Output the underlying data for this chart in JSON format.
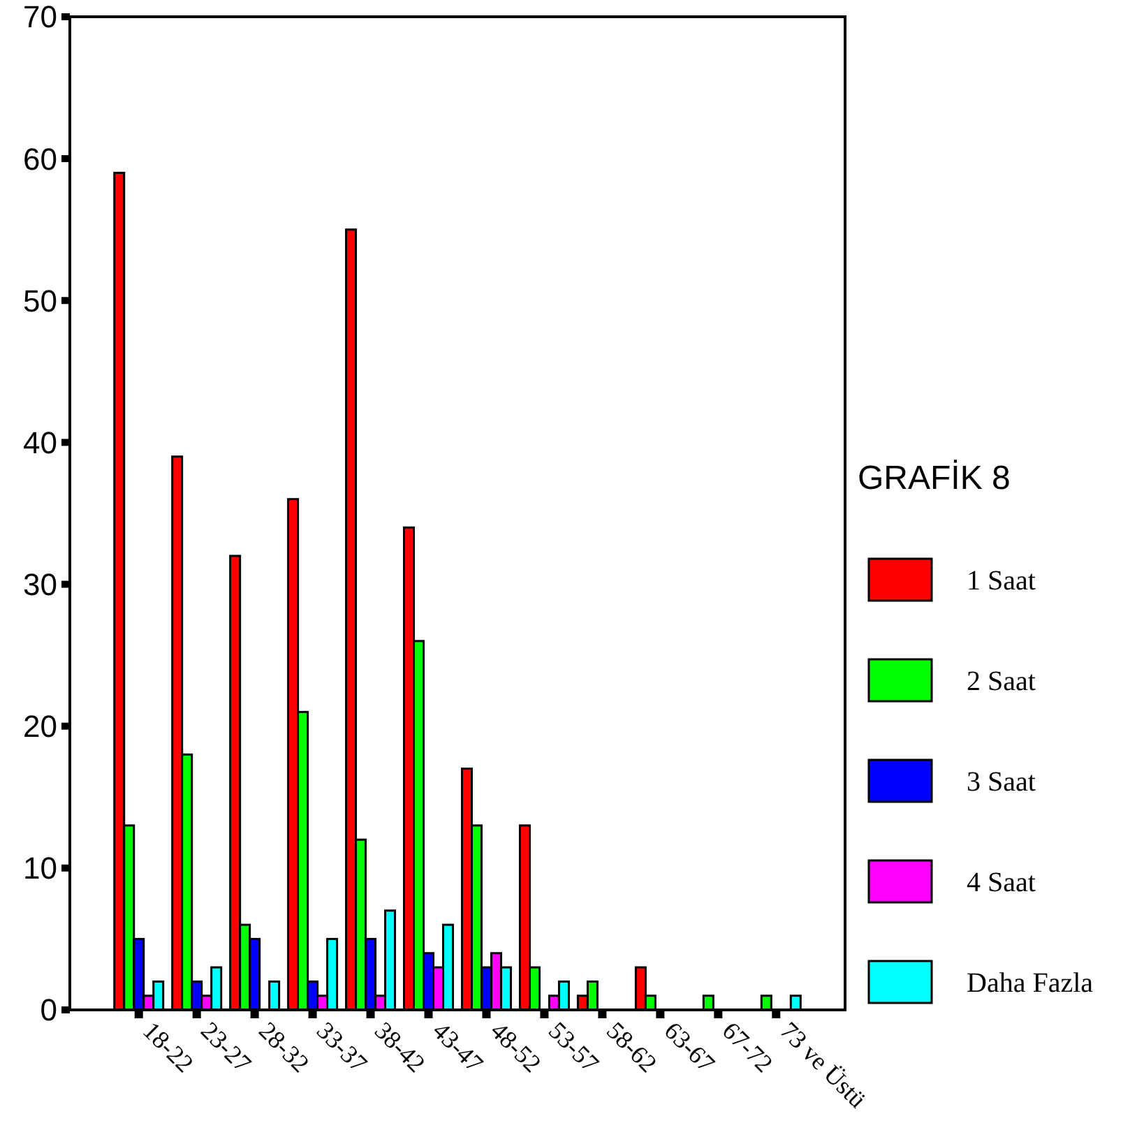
{
  "chart_data": {
    "type": "bar",
    "legend_title": "GRAFİK 8",
    "categories": [
      "18-22",
      "23-27",
      "28-32",
      "33-37",
      "38-42",
      "43-47",
      "48-52",
      "53-57",
      "58-62",
      "63-67",
      "67-72",
      "73 ve Üstü"
    ],
    "series": [
      {
        "name": "1 Saat",
        "color": "#ff0000",
        "values": [
          59,
          39,
          32,
          36,
          55,
          34,
          17,
          13,
          1,
          3,
          0,
          0
        ]
      },
      {
        "name": "2 Saat",
        "color": "#00ff00",
        "values": [
          13,
          18,
          6,
          21,
          12,
          26,
          13,
          3,
          2,
          1,
          1,
          1
        ]
      },
      {
        "name": "3 Saat",
        "color": "#0000ff",
        "values": [
          5,
          2,
          5,
          2,
          5,
          4,
          3,
          0,
          0,
          0,
          0,
          0
        ]
      },
      {
        "name": "4 Saat",
        "color": "#ff00ff",
        "values": [
          1,
          1,
          0,
          1,
          1,
          3,
          4,
          1,
          0,
          0,
          0,
          0
        ]
      },
      {
        "name": "Daha Fazla",
        "color": "#00ffff",
        "values": [
          2,
          3,
          2,
          5,
          7,
          6,
          3,
          2,
          0,
          0,
          0,
          1
        ]
      }
    ],
    "ylim": [
      0,
      70
    ],
    "yticks": [
      0,
      10,
      20,
      30,
      40,
      50,
      60,
      70
    ],
    "grid": false,
    "legend": "right"
  }
}
